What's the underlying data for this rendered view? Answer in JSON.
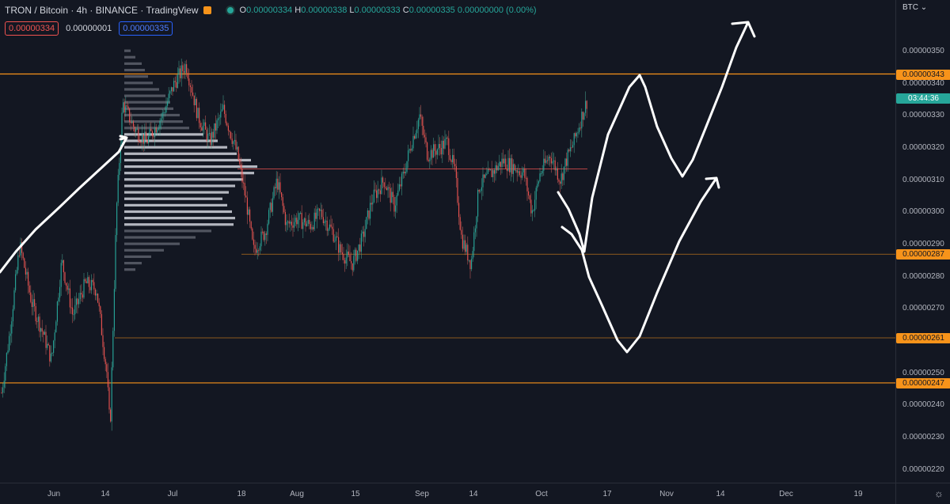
{
  "header": {
    "symbol": "TRON / Bitcoin · 4h · BINANCE · TradingView",
    "ohlc": {
      "o_key": "O",
      "o_val": "0.00000334",
      "h_key": "H",
      "h_val": "0.00000338",
      "l_key": "L",
      "l_val": "0.00000333",
      "c_key": "C",
      "c_val": "0.00000335",
      "change": "0.00000000 (0.00%)"
    }
  },
  "boxes": {
    "sell": "0.00000334",
    "spread": "0.00000001",
    "buy": "0.00000335"
  },
  "price_axis": {
    "unit": "BTC",
    "labels": [
      {
        "text": "0.00000350",
        "v": 350
      },
      {
        "text": "0.00000340",
        "v": 340
      },
      {
        "text": "0.00000330",
        "v": 330
      },
      {
        "text": "0.00000320",
        "v": 320
      },
      {
        "text": "0.00000310",
        "v": 310
      },
      {
        "text": "0.00000300",
        "v": 300
      },
      {
        "text": "0.00000290",
        "v": 290
      },
      {
        "text": "0.00000280",
        "v": 280
      },
      {
        "text": "0.00000270",
        "v": 270
      },
      {
        "text": "0.00000250",
        "v": 250
      },
      {
        "text": "0.00000240",
        "v": 240
      },
      {
        "text": "0.00000230",
        "v": 230
      },
      {
        "text": "0.00000220",
        "v": 220
      }
    ],
    "tags": [
      {
        "text": "0.00000343",
        "v": 343,
        "kind": "orange"
      },
      {
        "text": "03:44:36",
        "v": 335.5,
        "kind": "green"
      },
      {
        "text": "0.00000287",
        "v": 287,
        "kind": "orange"
      },
      {
        "text": "0.00000261",
        "v": 261,
        "kind": "orange"
      },
      {
        "text": "0.00000247",
        "v": 247,
        "kind": "orange"
      }
    ]
  },
  "time_axis": [
    {
      "text": "Jun",
      "x": 68
    },
    {
      "text": "14",
      "x": 133
    },
    {
      "text": "Jul",
      "x": 218
    },
    {
      "text": "18",
      "x": 305
    },
    {
      "text": "Aug",
      "x": 375
    },
    {
      "text": "15",
      "x": 449
    },
    {
      "text": "Sep",
      "x": 533
    },
    {
      "text": "14",
      "x": 598
    },
    {
      "text": "Oct",
      "x": 684
    },
    {
      "text": "17",
      "x": 767
    },
    {
      "text": "Nov",
      "x": 842
    },
    {
      "text": "14",
      "x": 910
    },
    {
      "text": "Dec",
      "x": 993
    },
    {
      "text": "19",
      "x": 1084
    }
  ],
  "chart_data": {
    "type": "candlestick",
    "ylim": [
      216,
      366
    ],
    "horizontal_levels": [
      {
        "value": 343,
        "color": "#f7931a"
      },
      {
        "value": 287,
        "color": "#f7931a"
      },
      {
        "value": 261,
        "color": "#f7931a"
      },
      {
        "value": 247,
        "color": "#f7931a"
      },
      {
        "value": 313.5,
        "color": "#ef5350"
      }
    ],
    "price_path": [
      [
        2,
        244
      ],
      [
        12,
        262
      ],
      [
        25,
        290
      ],
      [
        40,
        272
      ],
      [
        55,
        262
      ],
      [
        65,
        254
      ],
      [
        78,
        285
      ],
      [
        92,
        268
      ],
      [
        108,
        278
      ],
      [
        122,
        276
      ],
      [
        135,
        250
      ],
      [
        139,
        232
      ],
      [
        147,
        300
      ],
      [
        155,
        334
      ],
      [
        170,
        326
      ],
      [
        185,
        322
      ],
      [
        205,
        330
      ],
      [
        220,
        340
      ],
      [
        235,
        346
      ],
      [
        250,
        330
      ],
      [
        265,
        322
      ],
      [
        282,
        332
      ],
      [
        300,
        318
      ],
      [
        312,
        302
      ],
      [
        320,
        288
      ],
      [
        335,
        294
      ],
      [
        350,
        310
      ],
      [
        362,
        296
      ],
      [
        375,
        298
      ],
      [
        392,
        296
      ],
      [
        405,
        300
      ],
      [
        420,
        294
      ],
      [
        430,
        288
      ],
      [
        445,
        284
      ],
      [
        458,
        292
      ],
      [
        470,
        304
      ],
      [
        485,
        310
      ],
      [
        498,
        302
      ],
      [
        510,
        312
      ],
      [
        520,
        322
      ],
      [
        530,
        330
      ],
      [
        540,
        318
      ],
      [
        555,
        320
      ],
      [
        565,
        322
      ],
      [
        575,
        312
      ],
      [
        583,
        292
      ],
      [
        595,
        284
      ],
      [
        605,
        308
      ],
      [
        620,
        312
      ],
      [
        635,
        316
      ],
      [
        650,
        314
      ],
      [
        662,
        312
      ],
      [
        672,
        300
      ],
      [
        682,
        312
      ],
      [
        695,
        318
      ],
      [
        708,
        310
      ],
      [
        715,
        316
      ],
      [
        725,
        322
      ],
      [
        735,
        330
      ],
      [
        742,
        335
      ]
    ],
    "volume_profile": [
      {
        "v": 350,
        "w": 8,
        "c": "#5d606b"
      },
      {
        "v": 348,
        "w": 14,
        "c": "#5d606b"
      },
      {
        "v": 346,
        "w": 22,
        "c": "#5d606b"
      },
      {
        "v": 344,
        "w": 26,
        "c": "#5d606b"
      },
      {
        "v": 342,
        "w": 30,
        "c": "#5d606b"
      },
      {
        "v": 340,
        "w": 36,
        "c": "#5d606b"
      },
      {
        "v": 338,
        "w": 44,
        "c": "#5d606b"
      },
      {
        "v": 336,
        "w": 52,
        "c": "#5d606b"
      },
      {
        "v": 334,
        "w": 58,
        "c": "#5d606b"
      },
      {
        "v": 332,
        "w": 62,
        "c": "#5d606b"
      },
      {
        "v": 330,
        "w": 70,
        "c": "#5d606b"
      },
      {
        "v": 328,
        "w": 74,
        "c": "#5d606b"
      },
      {
        "v": 326,
        "w": 82,
        "c": "#5d606b"
      },
      {
        "v": 324,
        "w": 100,
        "c": "#d1d4dc"
      },
      {
        "v": 322,
        "w": 118,
        "c": "#d1d4dc"
      },
      {
        "v": 320,
        "w": 130,
        "c": "#d1d4dc"
      },
      {
        "v": 318,
        "w": 142,
        "c": "#d1d4dc"
      },
      {
        "v": 316,
        "w": 160,
        "c": "#d1d4dc"
      },
      {
        "v": 314,
        "w": 168,
        "c": "#d1d4dc"
      },
      {
        "v": 312,
        "w": 164,
        "c": "#d1d4dc"
      },
      {
        "v": 310,
        "w": 150,
        "c": "#d1d4dc"
      },
      {
        "v": 308,
        "w": 140,
        "c": "#d1d4dc"
      },
      {
        "v": 306,
        "w": 132,
        "c": "#d1d4dc"
      },
      {
        "v": 304,
        "w": 124,
        "c": "#d1d4dc"
      },
      {
        "v": 302,
        "w": 130,
        "c": "#d1d4dc"
      },
      {
        "v": 300,
        "w": 136,
        "c": "#d1d4dc"
      },
      {
        "v": 298,
        "w": 140,
        "c": "#d1d4dc"
      },
      {
        "v": 296,
        "w": 138,
        "c": "#d1d4dc"
      },
      {
        "v": 294,
        "w": 110,
        "c": "#5d606b"
      },
      {
        "v": 292,
        "w": 90,
        "c": "#5d606b"
      },
      {
        "v": 290,
        "w": 70,
        "c": "#5d606b"
      },
      {
        "v": 288,
        "w": 50,
        "c": "#5d606b"
      },
      {
        "v": 286,
        "w": 34,
        "c": "#5d606b"
      },
      {
        "v": 284,
        "w": 22,
        "c": "#5d606b"
      },
      {
        "v": 282,
        "w": 14,
        "c": "#5d606b"
      }
    ],
    "drawings": [
      {
        "points": [
          [
            0,
            344
          ],
          [
            20,
            318
          ],
          [
            45,
            290
          ],
          [
            75,
            262
          ],
          [
            100,
            238
          ],
          [
            125,
            215
          ],
          [
            150,
            192
          ],
          [
            160,
            174
          ],
          [
            152,
            176
          ],
          [
            160,
            174
          ],
          [
            152,
            172
          ]
        ]
      },
      {
        "points": [
          [
            710,
            287
          ],
          [
            722,
            296
          ],
          [
            735,
            316
          ],
          [
            744,
            350
          ],
          [
            760,
            385
          ],
          [
            780,
            430
          ],
          [
            792,
            445
          ],
          [
            808,
            425
          ],
          [
            830,
            370
          ],
          [
            858,
            305
          ],
          [
            885,
            255
          ],
          [
            905,
            225
          ],
          [
            908,
            237
          ],
          [
            905,
            225
          ],
          [
            892,
            226
          ]
        ]
      },
      {
        "points": [
          [
            705,
            243
          ],
          [
            718,
            264
          ],
          [
            732,
            296
          ],
          [
            738,
            318
          ],
          [
            748,
            250
          ],
          [
            768,
            170
          ],
          [
            795,
            110
          ],
          [
            808,
            95
          ],
          [
            815,
            110
          ],
          [
            830,
            160
          ],
          [
            848,
            200
          ],
          [
            862,
            223
          ],
          [
            875,
            202
          ],
          [
            892,
            160
          ],
          [
            912,
            110
          ],
          [
            930,
            60
          ],
          [
            945,
            28
          ],
          [
            953,
            46
          ],
          [
            945,
            28
          ],
          [
            925,
            30
          ]
        ]
      }
    ]
  }
}
